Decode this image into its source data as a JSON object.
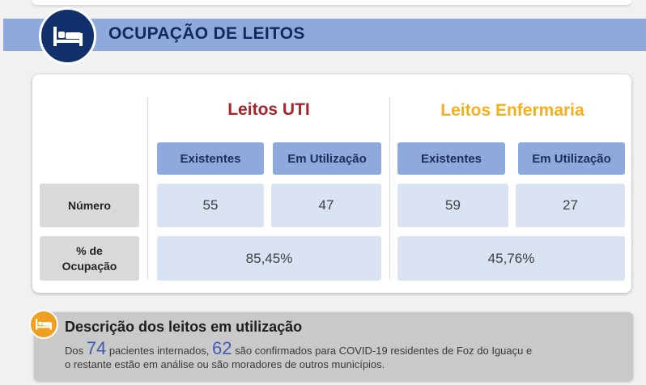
{
  "banner": {
    "title": "OCUPAÇÃO DE LEITOS",
    "icon": "bed-icon"
  },
  "uti": {
    "title": "Leitos UTI",
    "col_existentes": "Existentes",
    "col_utilizacao": "Em Utilização",
    "numero_existentes": "55",
    "numero_utilizacao": "47",
    "ocupacao": "85,45%"
  },
  "enfermaria": {
    "title": "Leitos Enfermaria",
    "col_existentes": "Existentes",
    "col_utilizacao": "Em Utilização",
    "numero_existentes": "59",
    "numero_utilizacao": "27",
    "ocupacao": "45,76%"
  },
  "rows": {
    "numero": "Número",
    "ocupacao_line1": "% de",
    "ocupacao_line2": "Ocupação"
  },
  "description": {
    "icon": "bed-icon",
    "title": "Descrição dos leitos em utilização",
    "part1": "Dos ",
    "internados": "74",
    "part2": " pacientes internados, ",
    "confirmados": "62",
    "part3": " são confirmados para COVID-19 residentes de Foz do Iguaçu e",
    "line2": "o restante estão em análise ou são moradores de outros municípios."
  },
  "colors": {
    "banner": "#8ea9db",
    "navy": "#12306b",
    "uti_title": "#a6262b",
    "enf_title": "#f2b01e",
    "cell": "#dae3f3",
    "label": "#d9d9d9",
    "accent_orange": "#f0a020"
  }
}
